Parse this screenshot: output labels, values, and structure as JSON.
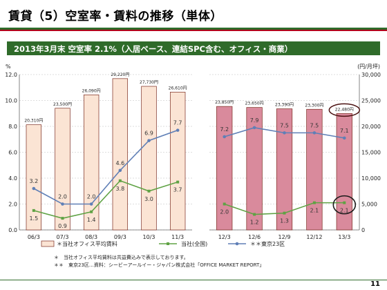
{
  "title": "賃貸（5）空室率・賃料の推移（単体）",
  "banner": "2013年3月末  空室率 2.1%（入居ベース、連結SPC含む、オフィス・商業）",
  "page_number": "11",
  "colors": {
    "bar_left": "#fbe4d4",
    "bar_right": "#d98a9c",
    "bar_stroke": "#7a2a1e",
    "line_company": "#5fa244",
    "line_tokyo": "#5f7fb6",
    "highlight": "#4a1010"
  },
  "chart_data": [
    {
      "type": "bar+line",
      "categories": [
        "06/3",
        "07/3",
        "08/3",
        "09/3",
        "10/3",
        "11/3"
      ],
      "left_axis": {
        "unit": "%",
        "ylim": [
          0,
          12
        ],
        "ticks": [
          "0.0",
          "2.0",
          "4.0",
          "6.0",
          "8.0",
          "10.0",
          "12.0"
        ]
      },
      "bar_axis": {
        "unit": "(円/月坪)",
        "ylim": [
          0,
          30000
        ]
      },
      "bars": {
        "name": "当社オフィス平均賃料",
        "values": [
          20310,
          23500,
          26090,
          29220,
          27730,
          26610
        ],
        "labels": [
          "20,310円",
          "23,500円",
          "26,090円",
          "29,220円",
          "27,730円",
          "26,610円"
        ]
      },
      "series": [
        {
          "name": "当社(全国)",
          "values": [
            1.5,
            0.9,
            1.4,
            3.8,
            3.0,
            3.7
          ],
          "labels": [
            "1.5",
            "0.9",
            "1.4",
            "3.8",
            "3.0",
            "3.7"
          ]
        },
        {
          "name": "東京23区",
          "values": [
            3.2,
            2.0,
            2.0,
            4.6,
            6.9,
            7.7
          ],
          "labels": [
            "3.2",
            "2.0",
            "2.0",
            "4.6",
            "6.9",
            "7.7"
          ]
        }
      ]
    },
    {
      "type": "bar+line",
      "categories": [
        "12/3",
        "12/6",
        "12/9",
        "12/12",
        "13/3"
      ],
      "right_axis": {
        "unit": "(円/月坪)",
        "ylim": [
          0,
          30000
        ],
        "ticks": [
          "0",
          "5,000",
          "10,000",
          "15,000",
          "20,000",
          "25,000",
          "30,000"
        ]
      },
      "line_axis": {
        "unit": "%",
        "ylim": [
          0,
          12
        ]
      },
      "bars": {
        "name": "当社オフィス平均賃料",
        "values": [
          23850,
          23650,
          23390,
          23300,
          22480
        ],
        "labels": [
          "23,850円",
          "23,650円",
          "23,390円",
          "23,300円",
          "22,480円"
        ]
      },
      "series": [
        {
          "name": "当社(全国)",
          "values": [
            2.0,
            1.2,
            1.3,
            2.1,
            2.1
          ],
          "labels": [
            "2.0",
            "1.2",
            "1.3",
            "2.1",
            "2.1"
          ]
        },
        {
          "name": "東京23区",
          "values": [
            7.2,
            7.9,
            7.5,
            7.5,
            7.1
          ],
          "labels": [
            "7.2",
            "7.9",
            "7.5",
            "7.5",
            "7.1"
          ]
        }
      ]
    }
  ],
  "legend": [
    {
      "label": "＊当社オフィス平均賃料",
      "kind": "bar"
    },
    {
      "label": "当社(全国)",
      "kind": "line-green"
    },
    {
      "label": "＊＊東京23区",
      "kind": "line-blue"
    }
  ],
  "notes": [
    "＊　当社オフィス平均賃料は共益費込みで表示しております。",
    "＊＊　東京23区…資料：シービーアールイー・ジャパン株式会社「OFFICE MARKET REPORT」"
  ]
}
